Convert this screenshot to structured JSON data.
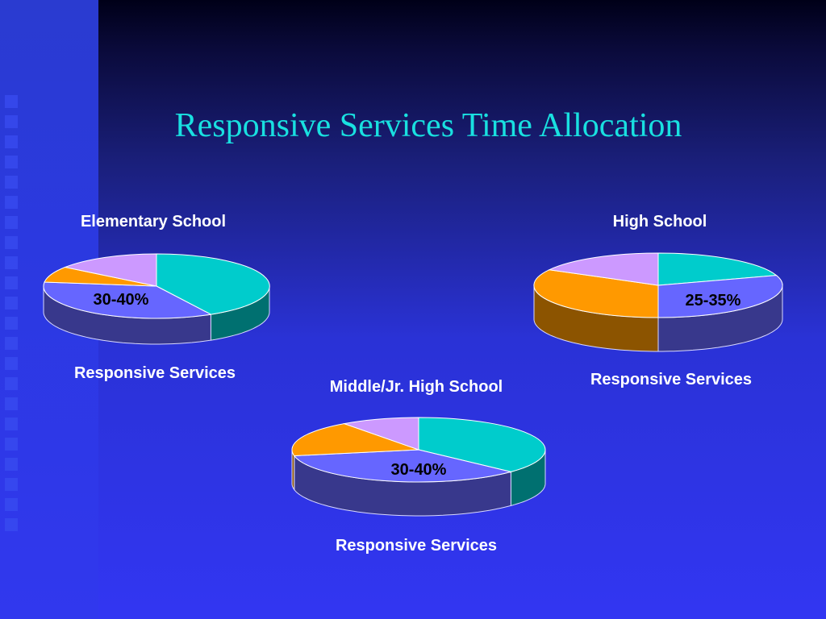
{
  "title": "Responsive Services Time Allocation",
  "colors": {
    "teal": "#00cccc",
    "blue": "#6666ff",
    "orange": "#ff9900",
    "lavender": "#cc99ff"
  },
  "chart_data": [
    {
      "type": "pie",
      "title": "Elementary School",
      "caption": "Responsive Services",
      "slices": [
        {
          "value": 42,
          "color": "#00cccc"
        },
        {
          "value": 35,
          "color": "#6666ff",
          "label": "30-40%"
        },
        {
          "value": 8,
          "color": "#ff9900"
        },
        {
          "value": 15,
          "color": "#cc99ff"
        }
      ]
    },
    {
      "type": "pie",
      "title": "High School",
      "caption": "Responsive Services",
      "slices": [
        {
          "value": 20,
          "color": "#00cccc"
        },
        {
          "value": 30,
          "color": "#6666ff",
          "label": "25-35%"
        },
        {
          "value": 33,
          "color": "#ff9900"
        },
        {
          "value": 17,
          "color": "#cc99ff"
        }
      ]
    },
    {
      "type": "pie",
      "title": "Middle/Jr. High School",
      "caption": "Responsive Services",
      "slices": [
        {
          "value": 37,
          "color": "#00cccc"
        },
        {
          "value": 35,
          "color": "#6666ff",
          "label": "30-40%"
        },
        {
          "value": 18,
          "color": "#ff9900"
        },
        {
          "value": 10,
          "color": "#cc99ff"
        }
      ]
    }
  ]
}
